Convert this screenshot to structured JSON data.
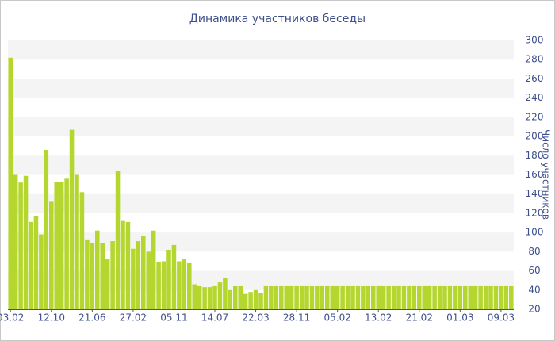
{
  "chart_data": {
    "type": "bar",
    "title": "Динамика участников беседы",
    "y_label": "Число участников",
    "categories": [
      "03.02",
      null,
      null,
      null,
      null,
      null,
      null,
      null,
      "12.10",
      null,
      null,
      null,
      null,
      null,
      null,
      null,
      "21.06",
      null,
      null,
      null,
      null,
      null,
      null,
      null,
      "27.02",
      null,
      null,
      null,
      null,
      null,
      null,
      null,
      "05.11",
      null,
      null,
      null,
      null,
      null,
      null,
      null,
      "14.07",
      null,
      null,
      null,
      null,
      null,
      null,
      null,
      "22.03",
      null,
      null,
      null,
      null,
      null,
      null,
      null,
      "28.11",
      null,
      null,
      null,
      null,
      null,
      null,
      null,
      "05.02",
      null,
      null,
      null,
      null,
      null,
      null,
      null,
      "13.02",
      null,
      null,
      null,
      null,
      null,
      null,
      null,
      "21.02",
      null,
      null,
      null,
      null,
      null,
      null,
      null,
      "01.03",
      null,
      null,
      null,
      null,
      null,
      null,
      null,
      "09.03",
      null,
      null
    ],
    "values": [
      282,
      160,
      152,
      159,
      111,
      117,
      98,
      186,
      132,
      153,
      153,
      156,
      207,
      160,
      142,
      92,
      89,
      102,
      89,
      72,
      91,
      164,
      112,
      111,
      83,
      91,
      96,
      80,
      102,
      69,
      70,
      82,
      87,
      70,
      72,
      68,
      46,
      44,
      43,
      43,
      44,
      48,
      53,
      40,
      44,
      44,
      36,
      38,
      40,
      37,
      44,
      44,
      44,
      44,
      44,
      44,
      44,
      44,
      44,
      44,
      44,
      44,
      44,
      44,
      44,
      44,
      44,
      44,
      44,
      44,
      44,
      44,
      44,
      44,
      44,
      44,
      44,
      44,
      44,
      44,
      44,
      44,
      44,
      44,
      44,
      44,
      44,
      44,
      44,
      44,
      44,
      44,
      44,
      44,
      44,
      44,
      44,
      44,
      44
    ],
    "color": "#b5d62e",
    "ylim": [
      20,
      300
    ],
    "yticks": [
      20,
      40,
      60,
      80,
      100,
      120,
      140,
      160,
      180,
      200,
      220,
      240,
      260,
      280,
      300
    ],
    "y_axis_side": "right",
    "grid": "bands"
  }
}
